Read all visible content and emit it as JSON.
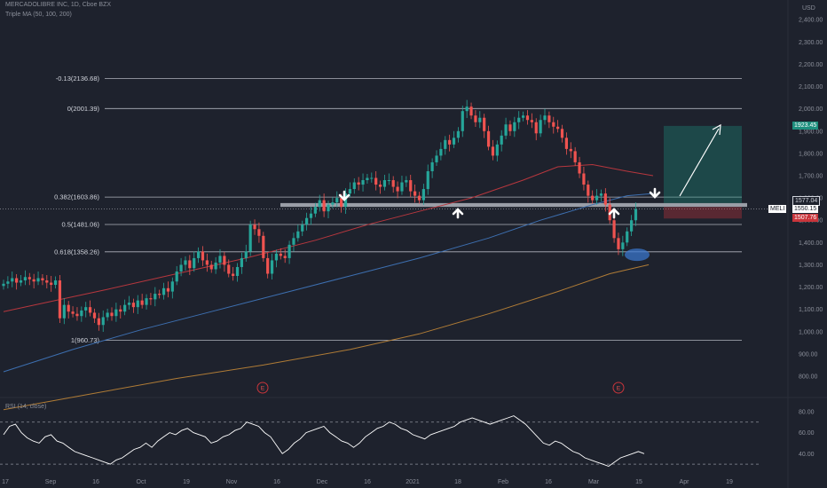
{
  "header": {
    "title": "MERCADOLIBRE INC, 1D, Cboe BZX",
    "indicator": "Triple MA (50, 100, 200)"
  },
  "price_axis": {
    "unit": "USD",
    "ticks": [
      "2,400.00",
      "2,300.00",
      "2,200.00",
      "2,100.00",
      "2,000.00",
      "1,900.00",
      "1,800.00",
      "1,700.00",
      "1,600.00",
      "1,500.00",
      "1,400.00",
      "1,300.00",
      "1,200.00",
      "1,100.00",
      "1,000.00",
      "900.00",
      "800.00"
    ]
  },
  "price_tags": {
    "target": "1923.45",
    "upper": "1577.04",
    "symbol": "MELI",
    "current": "1550.15",
    "stop": "1507.76"
  },
  "colors": {
    "background": "#1e222d",
    "up": "#26a69a",
    "down": "#ef5350",
    "ma50": "#b7373e",
    "ma100": "#3d6fb0",
    "ma200": "#b07c36"
  },
  "rsi": {
    "label": "RSI (14, close)",
    "ticks": [
      "80.00",
      "60.00",
      "40.00"
    ]
  },
  "time_axis": {
    "labels": [
      "17",
      "Sep",
      "16",
      "Oct",
      "19",
      "Nov",
      "16",
      "Dec",
      "16",
      "2021",
      "18",
      "Feb",
      "16",
      "Mar",
      "15",
      "Apr",
      "19"
    ]
  },
  "earnings_markers": [
    "E",
    "E"
  ],
  "chart_data": {
    "type": "candlestick",
    "title": "MERCADOLIBRE INC, 1D, Cboe BZX",
    "ylim": [
      750,
      2450
    ],
    "fib_levels": [
      {
        "label": "-0.13(2136.68)",
        "value": 2136.68
      },
      {
        "label": "0(2001.39)",
        "value": 2001.39
      },
      {
        "label": "0.382(1603.86)",
        "value": 1603.86
      },
      {
        "label": "0.5(1481.06)",
        "value": 1481.06
      },
      {
        "label": "0.618(1358.26)",
        "value": 1358.26
      },
      {
        "label": "1(960.73)",
        "value": 960.73
      }
    ],
    "candles_close": [
      1215,
      1225,
      1240,
      1220,
      1230,
      1245,
      1235,
      1225,
      1240,
      1230,
      1220,
      1210,
      1230,
      1060,
      1120,
      1090,
      1080,
      1070,
      1095,
      1110,
      1085,
      1060,
      1030,
      1065,
      1085,
      1070,
      1100,
      1090,
      1120,
      1130,
      1110,
      1140,
      1120,
      1150,
      1145,
      1170,
      1165,
      1195,
      1180,
      1225,
      1270,
      1300,
      1320,
      1285,
      1330,
      1360,
      1320,
      1300,
      1280,
      1310,
      1340,
      1300,
      1260,
      1250,
      1290,
      1330,
      1360,
      1480,
      1460,
      1430,
      1330,
      1260,
      1320,
      1350,
      1340,
      1330,
      1390,
      1420,
      1450,
      1480,
      1510,
      1530,
      1560,
      1590,
      1540,
      1570,
      1580,
      1600,
      1560,
      1620,
      1640,
      1670,
      1660,
      1680,
      1690,
      1690,
      1660,
      1650,
      1680,
      1680,
      1650,
      1630,
      1670,
      1680,
      1630,
      1610,
      1590,
      1640,
      1720,
      1760,
      1790,
      1820,
      1860,
      1840,
      1870,
      1900,
      1990,
      2010,
      1970,
      1940,
      1960,
      1900,
      1830,
      1790,
      1840,
      1880,
      1930,
      1900,
      1940,
      1960,
      1970,
      1950,
      1940,
      1890,
      1950,
      1970,
      1940,
      1920,
      1910,
      1870,
      1820,
      1810,
      1760,
      1710,
      1660,
      1610,
      1590,
      1610,
      1620,
      1570,
      1500,
      1420,
      1370,
      1400,
      1450,
      1500,
      1550
    ],
    "candles_start": 1205,
    "ma50": [
      [
        0,
        1090
      ],
      [
        60,
        1140
      ],
      [
        120,
        1190
      ],
      [
        200,
        1260
      ],
      [
        280,
        1330
      ],
      [
        360,
        1410
      ],
      [
        420,
        1480
      ],
      [
        480,
        1540
      ],
      [
        540,
        1600
      ],
      [
        600,
        1680
      ],
      [
        640,
        1740
      ],
      [
        680,
        1750
      ],
      [
        720,
        1720
      ],
      [
        750,
        1700
      ]
    ],
    "ma100": [
      [
        0,
        820
      ],
      [
        80,
        920
      ],
      [
        160,
        1010
      ],
      [
        240,
        1090
      ],
      [
        320,
        1170
      ],
      [
        400,
        1250
      ],
      [
        480,
        1330
      ],
      [
        560,
        1420
      ],
      [
        620,
        1500
      ],
      [
        680,
        1570
      ],
      [
        720,
        1610
      ],
      [
        750,
        1620
      ]
    ],
    "ma200": [
      [
        0,
        650
      ],
      [
        100,
        720
      ],
      [
        200,
        790
      ],
      [
        300,
        850
      ],
      [
        400,
        920
      ],
      [
        480,
        990
      ],
      [
        560,
        1080
      ],
      [
        640,
        1180
      ],
      [
        700,
        1260
      ],
      [
        745,
        1300
      ]
    ],
    "rsi_values": [
      58,
      66,
      68,
      60,
      55,
      52,
      50,
      56,
      58,
      52,
      50,
      46,
      42,
      40,
      38,
      36,
      34,
      32,
      30,
      34,
      36,
      40,
      44,
      46,
      50,
      46,
      52,
      56,
      60,
      58,
      62,
      64,
      60,
      58,
      56,
      50,
      52,
      56,
      58,
      62,
      64,
      70,
      68,
      66,
      60,
      56,
      48,
      40,
      44,
      50,
      54,
      60,
      62,
      64,
      66,
      60,
      56,
      52,
      50,
      46,
      50,
      56,
      60,
      64,
      66,
      70,
      68,
      64,
      62,
      58,
      56,
      54,
      58,
      60,
      62,
      64,
      66,
      70,
      72,
      74,
      72,
      70,
      68,
      70,
      72,
      74,
      76,
      72,
      68,
      62,
      56,
      50,
      48,
      52,
      50,
      46,
      42,
      40,
      36,
      34,
      32,
      30,
      28,
      32,
      36,
      38,
      40,
      42,
      40
    ],
    "rsi_ylim": [
      20,
      90
    ]
  }
}
